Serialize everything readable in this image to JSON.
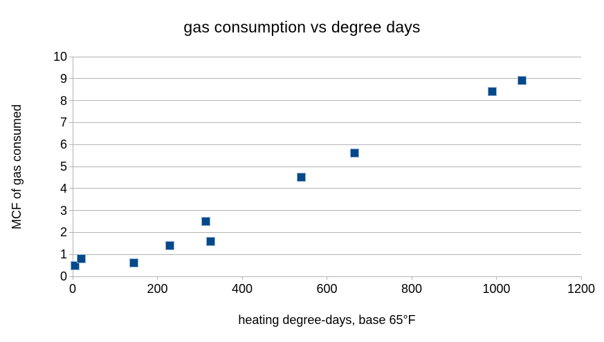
{
  "chart_data": {
    "type": "scatter",
    "title": "gas consumption vs degree days",
    "xlabel": "heating degree-days, base 65°F",
    "ylabel": "MCF of gas consumed",
    "xlim": [
      0,
      1200
    ],
    "ylim": [
      0,
      10
    ],
    "x_ticks": [
      0,
      200,
      400,
      600,
      800,
      1000,
      1200
    ],
    "y_ticks": [
      0,
      1,
      2,
      3,
      4,
      5,
      6,
      7,
      8,
      9,
      10
    ],
    "grid": "horizontal-only",
    "legend": "none",
    "marker": "square",
    "colors": {
      "marker_fill": "#064889",
      "marker_border": "#8fb2d6",
      "gridline": "#b3b3b3",
      "axis": "#b3b3b3",
      "text": "#000000",
      "background": "#ffffff"
    },
    "series": [
      {
        "name": "gas consumption",
        "points": [
          [
            5,
            0.5
          ],
          [
            20,
            0.8
          ],
          [
            145,
            0.6
          ],
          [
            230,
            1.4
          ],
          [
            315,
            2.5
          ],
          [
            325,
            1.6
          ],
          [
            540,
            4.5
          ],
          [
            665,
            5.6
          ],
          [
            990,
            8.4
          ],
          [
            1060,
            8.9
          ]
        ]
      }
    ]
  }
}
